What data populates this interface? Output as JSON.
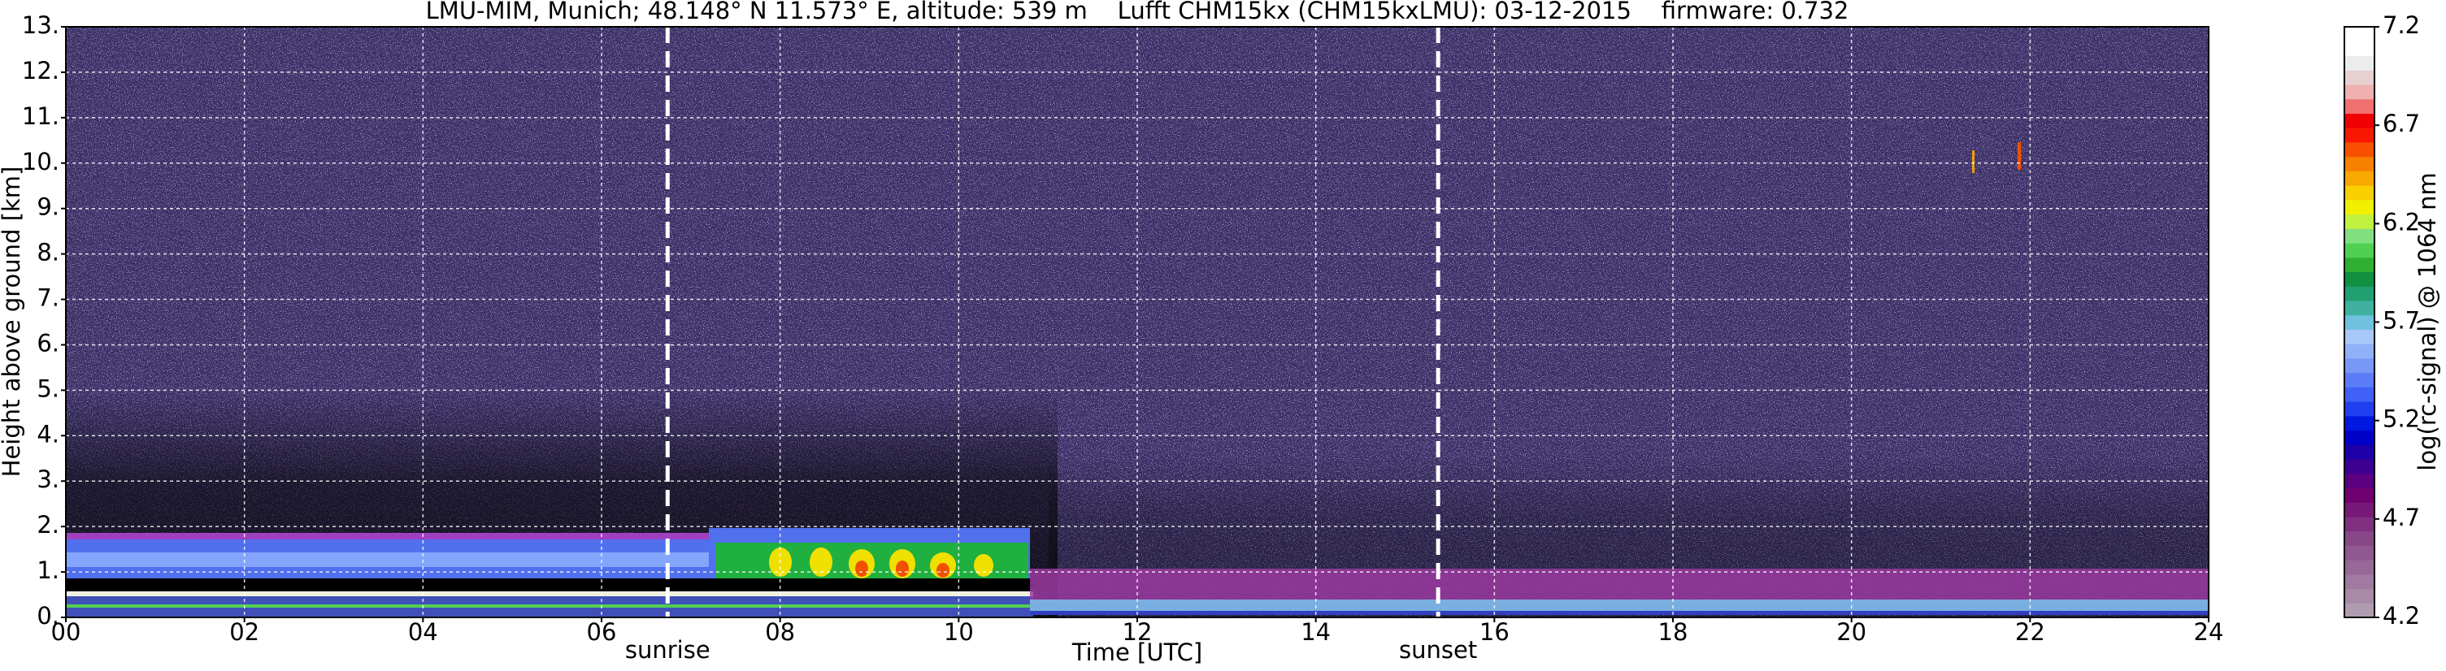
{
  "chart_data": {
    "type": "heatmap",
    "title": "LMU-MIM, Munich; 48.148° N 11.573° E, altitude: 539 m    Lufft CHM15kx (CHM15kxLMU): 03-12-2015    firmware: 0.732",
    "x_label": "Time [UTC]",
    "y_label": "Height above ground [km]",
    "colorbar_label": "log(rc-signal) @ 1064 nm",
    "xlim": [
      0,
      24
    ],
    "xticks": [
      {
        "value": 0,
        "label": "00"
      },
      {
        "value": 2,
        "label": "02"
      },
      {
        "value": 4,
        "label": "04"
      },
      {
        "value": 6,
        "label": "06"
      },
      {
        "value": 8,
        "label": "08"
      },
      10,
      12,
      14,
      16,
      18,
      20,
      22,
      24
    ],
    "ylim": [
      0,
      13
    ],
    "yticks": [
      {
        "value": 0,
        "label": "0."
      },
      {
        "value": 1,
        "label": "1."
      },
      {
        "value": 2,
        "label": "2."
      },
      {
        "value": 3,
        "label": "3."
      },
      {
        "value": 4,
        "label": "4."
      },
      {
        "value": 5,
        "label": "5."
      },
      {
        "value": 6,
        "label": "6."
      },
      {
        "value": 7,
        "label": "7."
      },
      {
        "value": 8,
        "label": "8."
      },
      {
        "value": 9,
        "label": "9."
      },
      {
        "value": 10,
        "label": "10."
      },
      {
        "value": 11,
        "label": "11."
      },
      {
        "value": 12,
        "label": "12."
      },
      {
        "value": 13,
        "label": "13."
      }
    ],
    "grid": true,
    "colorbar_lim": [
      4.2,
      7.2
    ],
    "colorbar_ticks": [
      4.2,
      4.7,
      5.2,
      5.7,
      6.2,
      6.7,
      7.2
    ],
    "colormap": [
      "#b09cb0",
      "#a88aa8",
      "#a07aa0",
      "#986898",
      "#905890",
      "#884888",
      "#803080",
      "#781878",
      "#700070",
      "#5a0080",
      "#3c0090",
      "#1e00a8",
      "#0000c8",
      "#0018e0",
      "#2040f0",
      "#4060f8",
      "#5a7cf8",
      "#7898f8",
      "#90b0f8",
      "#a8c8f8",
      "#70c0e0",
      "#40b0a0",
      "#20a070",
      "#109040",
      "#30b030",
      "#50d050",
      "#80e080",
      "#c0f040",
      "#f0f000",
      "#f8d000",
      "#f8a800",
      "#f88000",
      "#f85000",
      "#f81800",
      "#f00000",
      "#f07070",
      "#f0b0b0",
      "#e8d0d0",
      "#ececec",
      "#ffffff",
      "#ffffff"
    ],
    "annotations": [
      {
        "label": "sunrise",
        "x": 6.74
      },
      {
        "label": "sunset",
        "x": 15.37
      }
    ]
  }
}
